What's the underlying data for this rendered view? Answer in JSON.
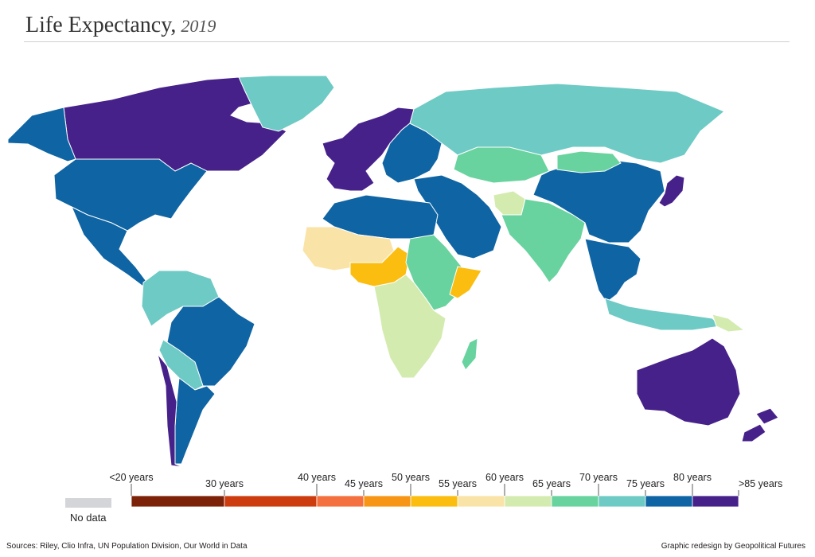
{
  "title": {
    "main": "Life Expectancy,",
    "year": "2019"
  },
  "legend": {
    "no_data_label": "No data",
    "no_data_color": "#d4d5d9",
    "bins": [
      {
        "label": "<20 years",
        "color": "#7b2208"
      },
      {
        "label": "30 years",
        "color": "#cc3c0f"
      },
      {
        "label": "40 years",
        "color": "#f4713f"
      },
      {
        "label": "45 years",
        "color": "#f79616"
      },
      {
        "label": "50 years",
        "color": "#fbbd10"
      },
      {
        "label": "55 years",
        "color": "#fae3a6"
      },
      {
        "label": "60 years",
        "color": "#d4ebb0"
      },
      {
        "label": "65 years",
        "color": "#68d39e"
      },
      {
        "label": "70 years",
        "color": "#6ecac4"
      },
      {
        "label": "75 years",
        "color": "#0f64a3"
      },
      {
        "label": "80 years",
        "color": "#47218a"
      }
    ],
    "last_label": ">85 years"
  },
  "colors": {
    "ocean": "#ffffff",
    "border": "#ffffff"
  },
  "regions": [
    {
      "name": "Canada",
      "bin": 10
    },
    {
      "name": "Alaska (USA)",
      "bin": 9
    },
    {
      "name": "Greenland",
      "bin": 8
    },
    {
      "name": "United States",
      "bin": 9
    },
    {
      "name": "Mexico and Central America",
      "bin": 9
    },
    {
      "name": "Northern South America",
      "bin": 8
    },
    {
      "name": "Brazil",
      "bin": 9
    },
    {
      "name": "Bolivia and Paraguay",
      "bin": 8
    },
    {
      "name": "Argentina",
      "bin": 9
    },
    {
      "name": "Chile",
      "bin": 10
    },
    {
      "name": "Western Europe",
      "bin": 10
    },
    {
      "name": "Eastern Europe",
      "bin": 9
    },
    {
      "name": "Russia",
      "bin": 8
    },
    {
      "name": "Kazakhstan",
      "bin": 7
    },
    {
      "name": "Middle East",
      "bin": 9
    },
    {
      "name": "Afghanistan",
      "bin": 6
    },
    {
      "name": "South Asia",
      "bin": 7
    },
    {
      "name": "China",
      "bin": 9
    },
    {
      "name": "Mongolia",
      "bin": 7
    },
    {
      "name": "Japan",
      "bin": 10
    },
    {
      "name": "Southeast Asia",
      "bin": 9
    },
    {
      "name": "Indonesia",
      "bin": 8
    },
    {
      "name": "Papua New Guinea",
      "bin": 6
    },
    {
      "name": "Australia",
      "bin": 10
    },
    {
      "name": "New Zealand",
      "bin": 10
    },
    {
      "name": "North Africa",
      "bin": 9
    },
    {
      "name": "Sahara states",
      "bin": 5
    },
    {
      "name": "Nigeria and Chad",
      "bin": 4
    },
    {
      "name": "East Africa",
      "bin": 7
    },
    {
      "name": "Somalia",
      "bin": 4
    },
    {
      "name": "Southern Africa",
      "bin": 6
    },
    {
      "name": "Madagascar",
      "bin": 7
    }
  ],
  "footer": {
    "sources": "Sources: Riley, Clio Infra, UN Population Division, Our World in Data",
    "credit": "Graphic redesign by Geopolitical Futures"
  }
}
